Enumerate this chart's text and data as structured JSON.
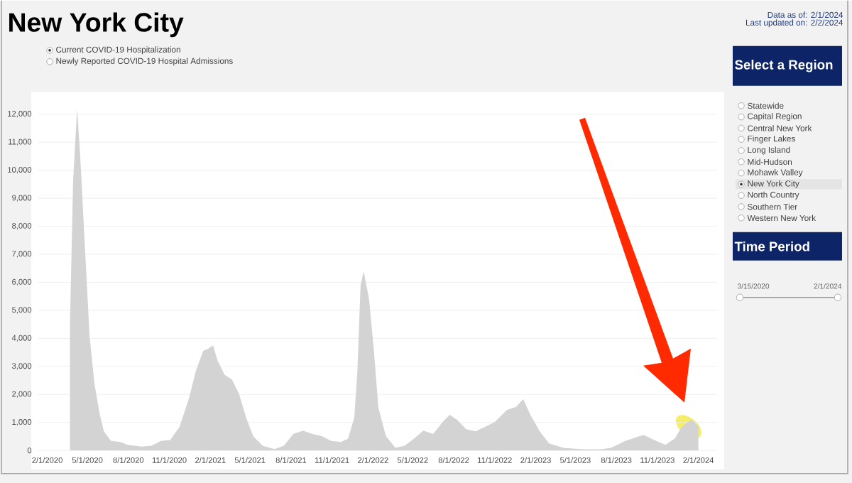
{
  "chart_data": {
    "type": "area",
    "title": "New York City",
    "x": [
      "2020-03-23",
      "2020-03-30",
      "2020-04-08",
      "2020-04-15",
      "2020-04-26",
      "2020-05-06",
      "2020-05-17",
      "2020-05-28",
      "2020-06-07",
      "2020-06-23",
      "2020-07-14",
      "2020-07-30",
      "2020-08-31",
      "2020-09-22",
      "2020-10-13",
      "2020-11-03",
      "2020-11-24",
      "2020-12-15",
      "2020-12-31",
      "2021-01-16",
      "2021-01-27",
      "2021-02-07",
      "2021-02-17",
      "2021-03-05",
      "2021-03-21",
      "2021-04-06",
      "2021-04-22",
      "2021-05-08",
      "2021-05-29",
      "2021-06-25",
      "2021-07-16",
      "2021-08-06",
      "2021-08-28",
      "2021-09-18",
      "2021-10-09",
      "2021-10-30",
      "2021-11-21",
      "2021-12-07",
      "2021-12-21",
      "2021-12-28",
      "2022-01-04",
      "2022-01-11",
      "2022-01-23",
      "2022-02-03",
      "2022-02-13",
      "2022-03-02",
      "2022-03-23",
      "2022-04-13",
      "2022-05-04",
      "2022-05-25",
      "2022-06-16",
      "2022-07-07",
      "2022-07-23",
      "2022-08-08",
      "2022-08-29",
      "2022-09-19",
      "2022-10-11",
      "2022-11-01",
      "2022-11-28",
      "2022-12-19",
      "2023-01-04",
      "2023-01-20",
      "2023-02-10",
      "2023-03-03",
      "2023-04-04",
      "2023-05-17",
      "2023-06-28",
      "2023-07-20",
      "2023-08-21",
      "2023-09-22",
      "2023-10-02",
      "2023-10-24",
      "2023-11-19",
      "2023-12-10",
      "2023-12-26",
      "2024-01-16",
      "2024-02-01"
    ],
    "series": [
      {
        "color": "#d3d3d3",
        "values": [
          4560,
          9630,
          12200,
          10480,
          7100,
          4060,
          2370,
          1350,
          680,
          340,
          300,
          200,
          140,
          170,
          340,
          370,
          850,
          1860,
          2870,
          3550,
          3630,
          3750,
          3210,
          2700,
          2540,
          2030,
          1180,
          510,
          170,
          50,
          170,
          590,
          710,
          590,
          510,
          340,
          300,
          420,
          1180,
          2870,
          5900,
          6400,
          5410,
          3550,
          1520,
          510,
          90,
          170,
          420,
          710,
          590,
          1010,
          1270,
          1100,
          760,
          680,
          850,
          1010,
          1440,
          1560,
          1830,
          1270,
          680,
          250,
          90,
          40,
          40,
          90,
          340,
          510,
          550,
          380,
          200,
          420,
          850,
          1100,
          880
        ]
      }
    ],
    "xlim": [
      "2020-01-12",
      "2024-03-14"
    ],
    "ylim": [
      0,
      12800
    ],
    "xticks": [
      {
        "value": "2020-02-01",
        "label": "2/1/2020"
      },
      {
        "value": "2020-05-01",
        "label": "5/1/2020"
      },
      {
        "value": "2020-08-01",
        "label": "8/1/2020"
      },
      {
        "value": "2020-11-01",
        "label": "11/1/2020"
      },
      {
        "value": "2021-02-01",
        "label": "2/1/2021"
      },
      {
        "value": "2021-05-01",
        "label": "5/1/2021"
      },
      {
        "value": "2021-08-01",
        "label": "8/1/2021"
      },
      {
        "value": "2021-11-01",
        "label": "11/1/2021"
      },
      {
        "value": "2022-02-01",
        "label": "2/1/2022"
      },
      {
        "value": "2022-05-01",
        "label": "5/1/2022"
      },
      {
        "value": "2022-08-01",
        "label": "8/1/2022"
      },
      {
        "value": "2022-11-01",
        "label": "11/1/2022"
      },
      {
        "value": "2023-02-01",
        "label": "2/1/2023"
      },
      {
        "value": "2023-05-01",
        "label": "5/1/2023"
      },
      {
        "value": "2023-08-01",
        "label": "8/1/2023"
      },
      {
        "value": "2023-11-01",
        "label": "11/1/2023"
      },
      {
        "value": "2024-02-01",
        "label": "2/1/2024"
      }
    ],
    "yticks": [
      0,
      {
        "value": 1000,
        "label": "1,000"
      },
      {
        "value": 2000,
        "label": "2,000"
      },
      {
        "value": 3000,
        "label": "3,000"
      },
      {
        "value": 4000,
        "label": "4,000"
      },
      {
        "value": 5000,
        "label": "5,000"
      },
      {
        "value": 6000,
        "label": "6,000"
      },
      {
        "value": 7000,
        "label": "7,000"
      },
      {
        "value": 8000,
        "label": "8,000"
      },
      {
        "value": 9000,
        "label": "9,000"
      },
      {
        "value": 10000,
        "label": "10,000"
      },
      {
        "value": 11000,
        "label": "11,000"
      },
      {
        "value": 12000,
        "label": "12,000"
      }
    ],
    "grid": "y",
    "annotations": [
      "Current COVID-19 Hospitalization",
      "Newly Reported COVID-19 Hospital Admissions",
      "Data as of: 2/1/2024",
      "Last updated on: 2/2/2024",
      "Select a Region",
      "Statewide",
      "Capital Region",
      "Central New York",
      "Finger Lakes",
      "Long Island",
      "Mid-Hudson",
      "Mohawk Valley",
      "New York City",
      "North Country",
      "Southern Tier",
      "Western New York",
      "Time Period",
      "3/15/2020",
      "2/1/2024"
    ]
  }
}
